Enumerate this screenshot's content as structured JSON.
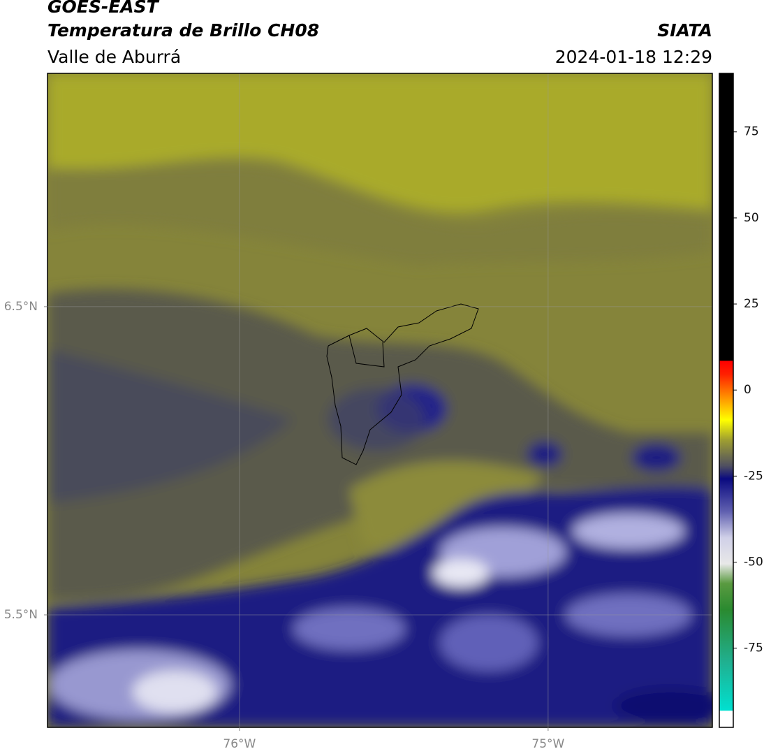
{
  "header": {
    "satellite": "GOES-EAST",
    "product": "Temperatura de Brillo CH08",
    "region": "Valle de Aburrá",
    "source": "SIATA",
    "datetime": "2024-01-18 12:29"
  },
  "map": {
    "xlim": [
      -76.622,
      -74.468
    ],
    "ylim": [
      5.135,
      7.257
    ],
    "xticks": [
      {
        "value": -76,
        "label": "76°W"
      },
      {
        "value": -75,
        "label": "75°W"
      }
    ],
    "yticks": [
      {
        "value": 6.5,
        "label": "6.5°N"
      },
      {
        "value": 5.5,
        "label": "5.5°N"
      }
    ],
    "grid": true
  },
  "colorbar": {
    "lim": [
      -98,
      92
    ],
    "ticks": [
      75,
      50,
      25,
      0,
      -25,
      -50,
      -75
    ]
  }
}
